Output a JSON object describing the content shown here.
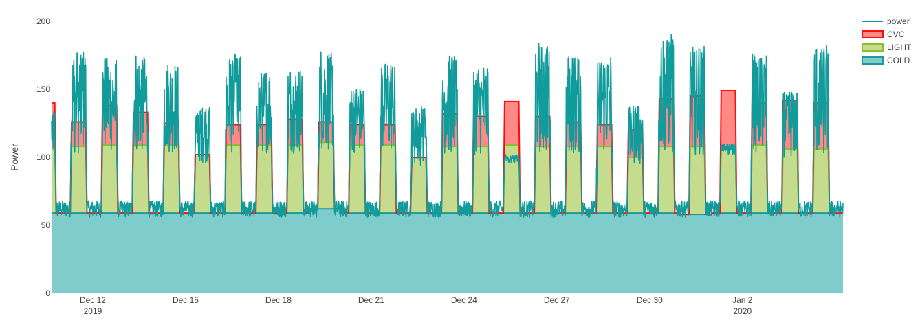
{
  "chart_data": {
    "type": "area",
    "ylabel": "Power",
    "ylim": [
      0,
      200
    ],
    "y_ticks": [
      "0",
      "50",
      "100",
      "150",
      "200"
    ],
    "x_ticks": [
      {
        "label": "Dec 12",
        "sublabel": "2019"
      },
      {
        "label": "Dec 15",
        "sublabel": ""
      },
      {
        "label": "Dec 18",
        "sublabel": ""
      },
      {
        "label": "Dec 21",
        "sublabel": ""
      },
      {
        "label": "Dec 24",
        "sublabel": ""
      },
      {
        "label": "Dec 27",
        "sublabel": ""
      },
      {
        "label": "Dec 30",
        "sublabel": ""
      },
      {
        "label": "Jan 2",
        "sublabel": "2020"
      }
    ],
    "x_range": [
      "2019-12-10T16:00",
      "2020-01-05T06:00"
    ],
    "grid": false,
    "legend_position": "top-right",
    "legend": [
      "power",
      "CVC",
      "LIGHT",
      "COLD"
    ],
    "colors": {
      "power": "#119b9b",
      "CVC_fill": "#ff8a85",
      "CVC_line": "#ff0d0d",
      "LIGHT_fill": "#c5dc8f",
      "LIGHT_line": "#8cbd2f",
      "COLD_fill": "#7fcccc",
      "COLD_line": "#1a9a9a"
    },
    "baseline": {
      "COLD": 59,
      "LIGHT_night": 0,
      "CVC_night": 0
    },
    "night_power": 62,
    "days": [
      {
        "date": "2019-12-10",
        "cold": 59,
        "light_top": 106,
        "cvc_top": 140,
        "power_peak": 135
      },
      {
        "date": "2019-12-11",
        "cold": 59,
        "light_top": 108,
        "cvc_top": 126,
        "power_peak": 178
      },
      {
        "date": "2019-12-12",
        "cold": 59,
        "light_top": 109,
        "cvc_top": 138,
        "power_peak": 174
      },
      {
        "date": "2019-12-13",
        "cold": 59,
        "light_top": 109,
        "cvc_top": 133,
        "power_peak": 176
      },
      {
        "date": "2019-12-14",
        "cold": 59,
        "light_top": 109,
        "cvc_top": 125,
        "power_peak": 168
      },
      {
        "date": "2019-12-15",
        "cold": 59,
        "light_top": 102,
        "cvc_top": 85,
        "power_peak": 137
      },
      {
        "date": "2019-12-16",
        "cold": 59,
        "light_top": 109,
        "cvc_top": 124,
        "power_peak": 176
      },
      {
        "date": "2019-12-17",
        "cold": 59,
        "light_top": 109,
        "cvc_top": 124,
        "power_peak": 163
      },
      {
        "date": "2019-12-18",
        "cold": 59,
        "light_top": 109,
        "cvc_top": 128,
        "power_peak": 164
      },
      {
        "date": "2019-12-19",
        "cold": 62,
        "light_top": 111,
        "cvc_top": 126,
        "power_peak": 178
      },
      {
        "date": "2019-12-20",
        "cold": 59,
        "light_top": 109,
        "cvc_top": 124,
        "power_peak": 152
      },
      {
        "date": "2019-12-21",
        "cold": 59,
        "light_top": 109,
        "cvc_top": 124,
        "power_peak": 170
      },
      {
        "date": "2019-12-22",
        "cold": 59,
        "light_top": 100,
        "cvc_top": 85,
        "power_peak": 137
      },
      {
        "date": "2019-12-23",
        "cold": 59,
        "light_top": 108,
        "cvc_top": 132,
        "power_peak": 176
      },
      {
        "date": "2019-12-24",
        "cold": 59,
        "light_top": 108,
        "cvc_top": 130,
        "power_peak": 166
      },
      {
        "date": "2019-12-25",
        "cold": 59,
        "light_top": 109,
        "cvc_top": 141,
        "power_peak": 102
      },
      {
        "date": "2019-12-26",
        "cold": 59,
        "light_top": 108,
        "cvc_top": 130,
        "power_peak": 186
      },
      {
        "date": "2019-12-27",
        "cold": 59,
        "light_top": 108,
        "cvc_top": 126,
        "power_peak": 176
      },
      {
        "date": "2019-12-28",
        "cold": 59,
        "light_top": 108,
        "cvc_top": 124,
        "power_peak": 175
      },
      {
        "date": "2019-12-29",
        "cold": 59,
        "light_top": 100,
        "cvc_top": 120,
        "power_peak": 138
      },
      {
        "date": "2019-12-30",
        "cold": 59,
        "light_top": 108,
        "cvc_top": 143,
        "power_peak": 191
      },
      {
        "date": "2019-12-31",
        "cold": 58,
        "light_top": 108,
        "cvc_top": 145,
        "power_peak": 182
      },
      {
        "date": "2020-01-01",
        "cold": 59,
        "light_top": 108,
        "cvc_top": 149,
        "power_peak": 110
      },
      {
        "date": "2020-01-02",
        "cold": 59,
        "light_top": 109,
        "cvc_top": 140,
        "power_peak": 176
      },
      {
        "date": "2020-01-03",
        "cold": 59,
        "light_top": 106,
        "cvc_top": 142,
        "power_peak": 148
      },
      {
        "date": "2020-01-04",
        "cold": 59,
        "light_top": 106,
        "cvc_top": 140,
        "power_peak": 182
      }
    ]
  }
}
